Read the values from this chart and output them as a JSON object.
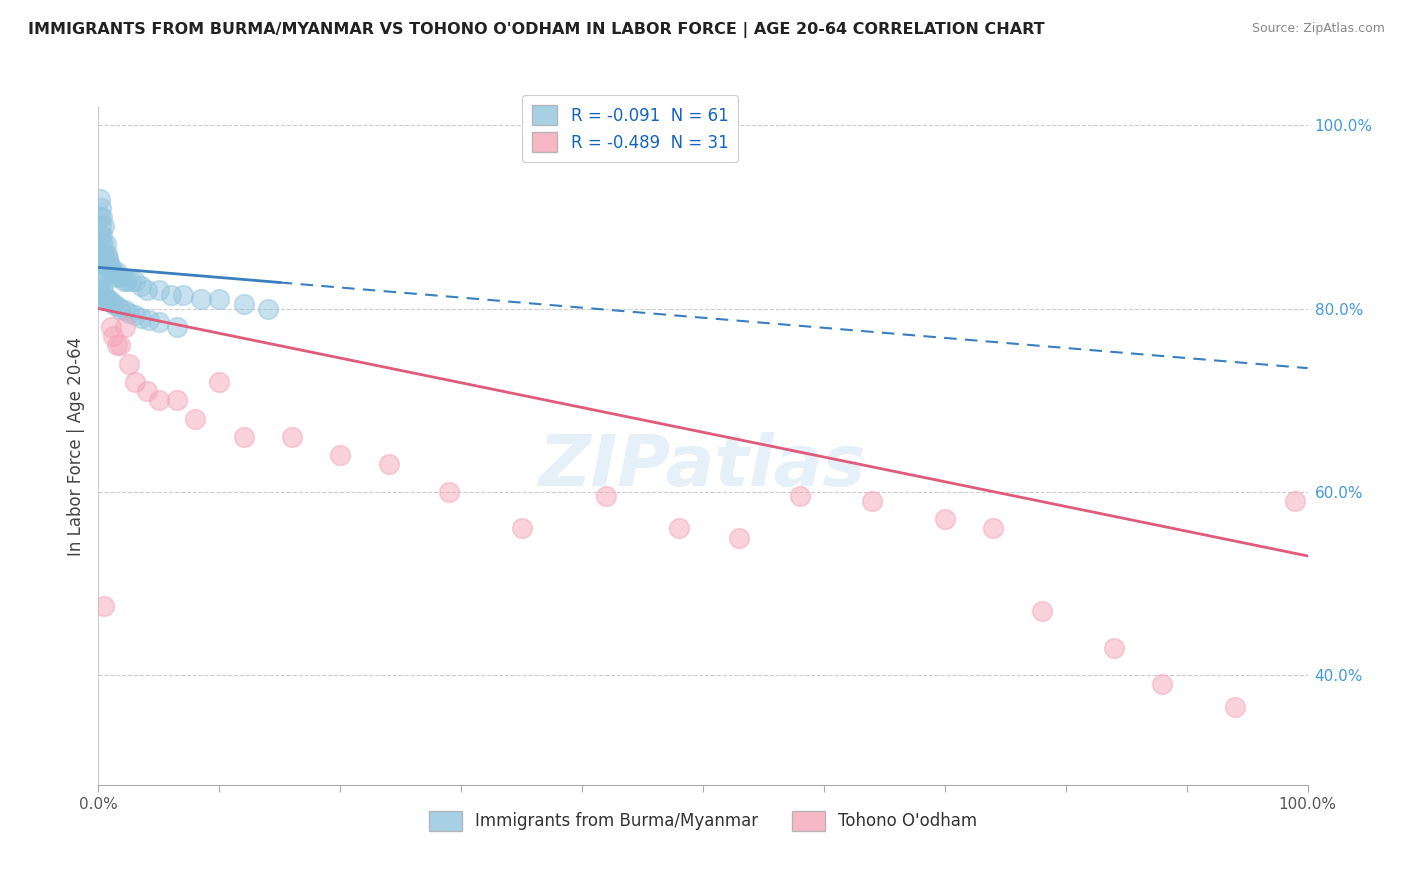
{
  "title": "IMMIGRANTS FROM BURMA/MYANMAR VS TOHONO O'ODHAM IN LABOR FORCE | AGE 20-64 CORRELATION CHART",
  "source": "Source: ZipAtlas.com",
  "ylabel": "In Labor Force | Age 20-64",
  "legend_label1": "Immigrants from Burma/Myanmar",
  "legend_label2": "Tohono O'odham",
  "R1": -0.091,
  "N1": 61,
  "R2": -0.489,
  "N2": 31,
  "blue_color": "#92c5de",
  "pink_color": "#f4a6b8",
  "blue_line_color": "#3a7ebf",
  "pink_line_color": "#e05a7a",
  "blue_line_x0": 0.0,
  "blue_line_y0": 0.845,
  "blue_line_x1": 1.0,
  "blue_line_y1": 0.735,
  "pink_line_x0": 0.0,
  "pink_line_y0": 0.8,
  "pink_line_x1": 1.0,
  "pink_line_y1": 0.53,
  "blue_x": [
    0.001,
    0.001,
    0.001,
    0.001,
    0.002,
    0.002,
    0.002,
    0.002,
    0.003,
    0.003,
    0.003,
    0.004,
    0.004,
    0.005,
    0.005,
    0.006,
    0.006,
    0.007,
    0.008,
    0.009,
    0.01,
    0.011,
    0.012,
    0.013,
    0.015,
    0.017,
    0.019,
    0.021,
    0.024,
    0.027,
    0.03,
    0.035,
    0.04,
    0.05,
    0.06,
    0.07,
    0.085,
    0.1,
    0.12,
    0.14,
    0.001,
    0.001,
    0.002,
    0.002,
    0.003,
    0.003,
    0.004,
    0.005,
    0.006,
    0.008,
    0.01,
    0.012,
    0.015,
    0.018,
    0.022,
    0.025,
    0.03,
    0.035,
    0.042,
    0.05,
    0.065
  ],
  "blue_y": [
    0.92,
    0.9,
    0.88,
    0.86,
    0.91,
    0.89,
    0.87,
    0.85,
    0.9,
    0.88,
    0.86,
    0.87,
    0.85,
    0.89,
    0.86,
    0.87,
    0.85,
    0.86,
    0.855,
    0.85,
    0.845,
    0.84,
    0.84,
    0.835,
    0.84,
    0.835,
    0.835,
    0.83,
    0.83,
    0.83,
    0.83,
    0.825,
    0.82,
    0.82,
    0.815,
    0.815,
    0.81,
    0.81,
    0.805,
    0.8,
    0.84,
    0.82,
    0.835,
    0.815,
    0.83,
    0.81,
    0.82,
    0.815,
    0.81,
    0.81,
    0.808,
    0.805,
    0.803,
    0.8,
    0.798,
    0.795,
    0.793,
    0.79,
    0.788,
    0.785,
    0.78
  ],
  "pink_x": [
    0.005,
    0.01,
    0.012,
    0.015,
    0.018,
    0.022,
    0.025,
    0.03,
    0.04,
    0.05,
    0.065,
    0.08,
    0.1,
    0.12,
    0.16,
    0.2,
    0.24,
    0.29,
    0.35,
    0.42,
    0.48,
    0.53,
    0.58,
    0.64,
    0.7,
    0.74,
    0.78,
    0.84,
    0.88,
    0.94,
    0.99
  ],
  "pink_y": [
    0.475,
    0.78,
    0.77,
    0.76,
    0.76,
    0.78,
    0.74,
    0.72,
    0.71,
    0.7,
    0.7,
    0.68,
    0.72,
    0.66,
    0.66,
    0.64,
    0.63,
    0.6,
    0.56,
    0.595,
    0.56,
    0.55,
    0.595,
    0.59,
    0.57,
    0.56,
    0.47,
    0.43,
    0.39,
    0.365,
    0.59
  ],
  "xlim": [
    0.0,
    1.0
  ],
  "ylim": [
    0.28,
    1.02
  ],
  "yticks_right": [
    0.4,
    0.6,
    0.8,
    1.0
  ],
  "ytick_labels_right": [
    "40.0%",
    "60.0%",
    "80.0%",
    "100.0%"
  ],
  "xticks": [
    0.0,
    0.1,
    0.2,
    0.3,
    0.4,
    0.5,
    0.6,
    0.7,
    0.8,
    0.9,
    1.0
  ],
  "xtick_labels": [
    "0.0%",
    "",
    "",
    "",
    "",
    "",
    "",
    "",
    "",
    "",
    "100.0%"
  ],
  "watermark": "ZIPatlas",
  "background_color": "#ffffff"
}
